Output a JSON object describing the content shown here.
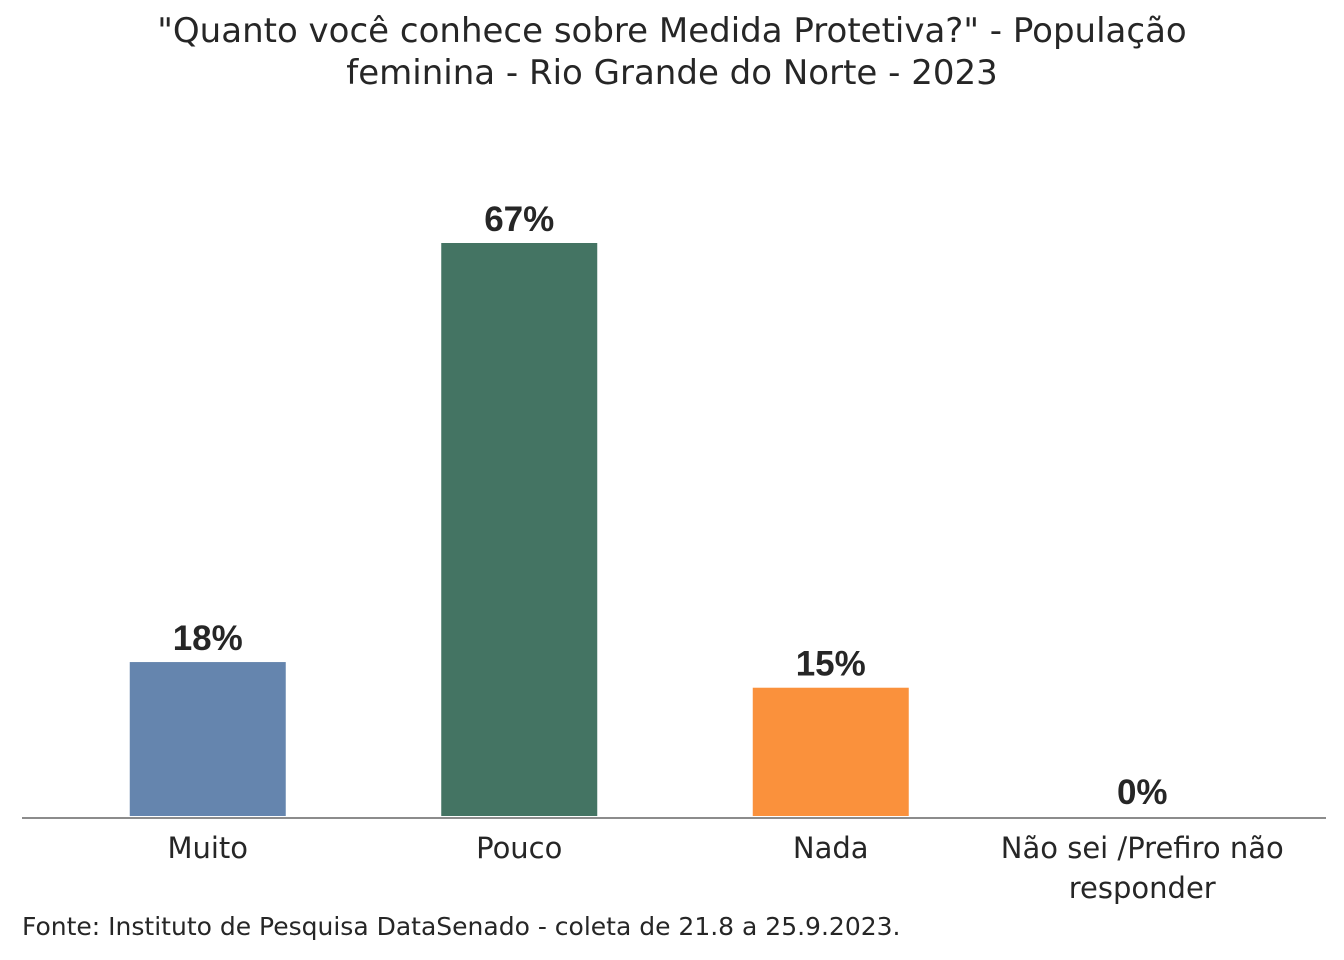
{
  "chart_data": {
    "type": "bar",
    "title_lines": [
      "\"Quanto você conhece sobre Medida Protetiva?\" - População",
      "feminina - Rio Grande do Norte - 2023"
    ],
    "categories": [
      [
        "Muito"
      ],
      [
        "Pouco"
      ],
      [
        "Nada"
      ],
      [
        "Não sei /Prefiro não",
        "responder"
      ]
    ],
    "values": [
      18,
      67,
      15,
      0
    ],
    "data_labels": [
      "18%",
      "67%",
      "15%",
      "0%"
    ],
    "colors": [
      "#6585ae",
      "#447463",
      "#fa913c",
      "#bdbdbd"
    ],
    "ylim": [
      0,
      67
    ],
    "grid": false,
    "legend": "none",
    "xlabel": "",
    "ylabel": ""
  },
  "source": "Fonte: Instituto de Pesquisa DataSenado - coleta de 21.8 a 25.9.2023."
}
